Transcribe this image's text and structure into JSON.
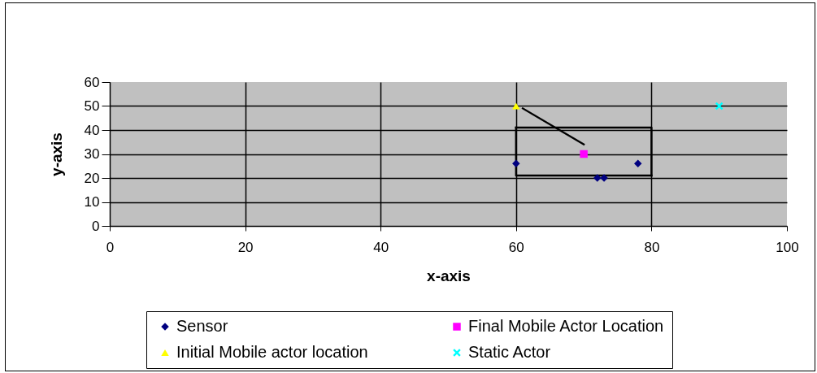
{
  "chart_data": {
    "type": "scatter",
    "xlabel": "x-axis",
    "ylabel": "y-axis",
    "xlim": [
      0,
      100
    ],
    "xticks": [
      0,
      20,
      40,
      60,
      80,
      100
    ],
    "ylim": [
      0,
      60
    ],
    "yticks": [
      0,
      10,
      20,
      30,
      40,
      50,
      60
    ],
    "grid": true,
    "legend": "bottom",
    "series": [
      {
        "name": "Sensor",
        "color": "#000080",
        "marker": "diamond",
        "x": [
          60,
          72,
          73,
          78
        ],
        "values": [
          26,
          20,
          20,
          26
        ]
      },
      {
        "name": "Final Mobile Actor Location",
        "color": "#ff00ff",
        "marker": "square",
        "x": [
          70
        ],
        "values": [
          30
        ]
      },
      {
        "name": "Initial Mobile actor location",
        "color": "#ffff00",
        "marker": "triangle",
        "x": [
          60
        ],
        "values": [
          50
        ]
      },
      {
        "name": "Static Actor",
        "color": "#00ffff",
        "marker": "cross",
        "x": [
          90
        ],
        "values": [
          50
        ]
      },
      {
        "type": "line",
        "color": "#000000",
        "marker": "none",
        "line_style": "solid",
        "x": [
          60,
          80,
          80
        ],
        "values": [
          41,
          41,
          21
        ]
      },
      {
        "type": "line",
        "color": "#000000",
        "marker": "none",
        "line_style": "solid",
        "x": [
          80,
          60,
          60
        ],
        "values": [
          21,
          21,
          41
        ]
      },
      {
        "type": "line",
        "color": "#000000",
        "marker": "none",
        "line_style": "solid",
        "x": [
          61,
          70
        ],
        "values": [
          49,
          34
        ]
      }
    ]
  }
}
